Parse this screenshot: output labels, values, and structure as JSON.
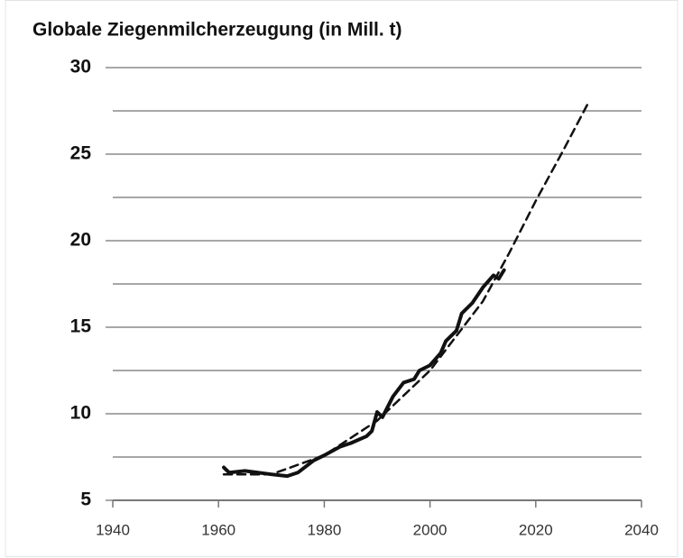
{
  "chart_data": {
    "type": "line",
    "title": "Globale Ziegenmilcherzeugung (in Mill. t)",
    "xlim": [
      1940,
      2040
    ],
    "xticks": [
      1940,
      1960,
      1980,
      2000,
      2020,
      2040
    ],
    "ylim": [
      5,
      30
    ],
    "yticks": [
      5,
      10,
      15,
      20,
      25,
      30
    ],
    "ygrid": [
      5,
      7.5,
      10,
      12.5,
      15,
      17.5,
      20,
      22.5,
      25,
      27.5,
      30
    ],
    "series": [
      {
        "name": null,
        "color": "#111111",
        "style": "solid",
        "x": [
          1961,
          1962,
          1965,
          1970,
          1973,
          1975,
          1978,
          1980,
          1983,
          1985,
          1988,
          1989,
          1990,
          1991,
          1993,
          1995,
          1997,
          1998,
          2000,
          2002,
          2003,
          2005,
          2006,
          2008,
          2010,
          2012,
          2013,
          2014
        ],
        "values": [
          6.9,
          6.6,
          6.7,
          6.5,
          6.4,
          6.6,
          7.3,
          7.6,
          8.1,
          8.3,
          8.7,
          9.0,
          10.1,
          9.8,
          11.0,
          11.8,
          12.0,
          12.5,
          12.8,
          13.5,
          14.2,
          14.8,
          15.8,
          16.4,
          17.3,
          18.0,
          17.8,
          18.3
        ]
      },
      {
        "name": null,
        "color": "#111111",
        "style": "dashed",
        "x": [
          1961,
          1970,
          1980,
          1990,
          2000,
          2010,
          2015,
          2020,
          2025,
          2030
        ],
        "values": [
          6.5,
          6.5,
          7.6,
          9.6,
          12.5,
          16.5,
          19.3,
          22.3,
          25.1,
          28.0
        ]
      }
    ]
  }
}
